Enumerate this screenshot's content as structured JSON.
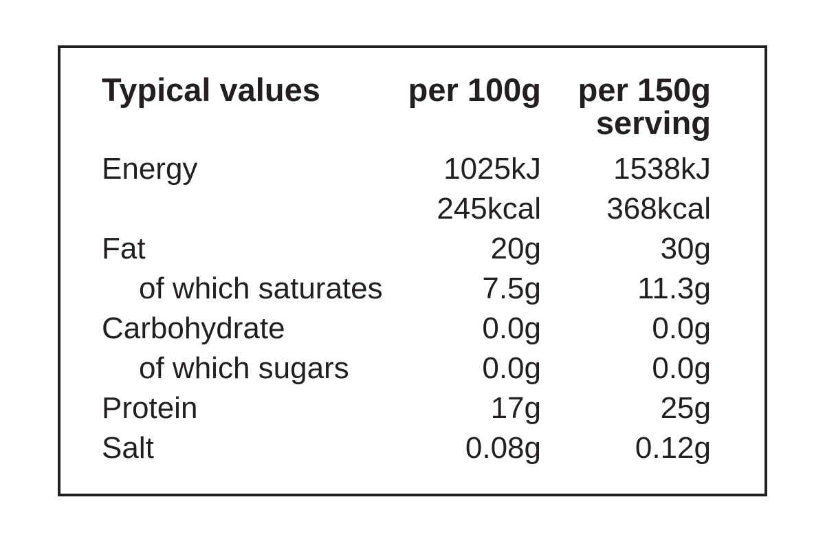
{
  "nutrition_label": {
    "colors": {
      "text": "#231f20",
      "border": "#231f20",
      "background": "#ffffff"
    },
    "header": {
      "col_label": "Typical values",
      "col_per100g": "per 100g",
      "col_per150g": "per 150g serving"
    },
    "rows": [
      {
        "label": "Energy",
        "indent": false,
        "per100g": "1025kJ",
        "per150g": "1538kJ"
      },
      {
        "label": "",
        "indent": false,
        "per100g": "245kcal",
        "per150g": "368kcal"
      },
      {
        "label": "Fat",
        "indent": false,
        "per100g": "20g",
        "per150g": "30g"
      },
      {
        "label": "of which saturates",
        "indent": true,
        "per100g": "7.5g",
        "per150g": "11.3g"
      },
      {
        "label": "Carbohydrate",
        "indent": false,
        "per100g": "0.0g",
        "per150g": "0.0g"
      },
      {
        "label": "of which sugars",
        "indent": true,
        "per100g": "0.0g",
        "per150g": "0.0g"
      },
      {
        "label": "Protein",
        "indent": false,
        "per100g": "17g",
        "per150g": "25g"
      },
      {
        "label": "Salt",
        "indent": false,
        "per100g": "0.08g",
        "per150g": "0.12g"
      }
    ]
  }
}
